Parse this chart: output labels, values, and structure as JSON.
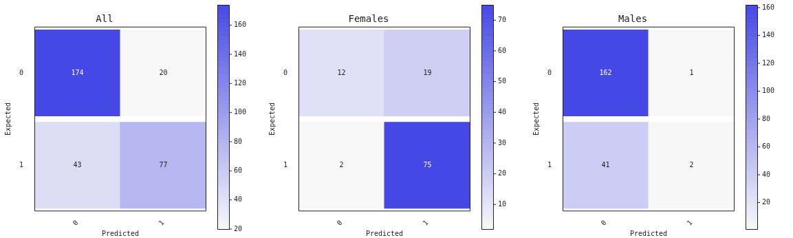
{
  "chart_data": [
    {
      "type": "heatmap",
      "title": "All",
      "xlabel": "Predicted",
      "ylabel": "Expected",
      "categories": [
        "0",
        "1"
      ],
      "y_categories": [
        "0",
        "1"
      ],
      "data_labels": true,
      "cells": [
        [
          174,
          20
        ],
        [
          43,
          77
        ]
      ],
      "clim": [
        20,
        174
      ],
      "cticks": [
        20,
        40,
        60,
        80,
        100,
        120,
        140,
        160
      ]
    },
    {
      "type": "heatmap",
      "title": "Females",
      "xlabel": "Predicted",
      "ylabel": "Expected",
      "categories": [
        "0",
        "1"
      ],
      "y_categories": [
        "0",
        "1"
      ],
      "data_labels": true,
      "cells": [
        [
          12,
          19
        ],
        [
          2,
          75
        ]
      ],
      "clim": [
        2,
        75
      ],
      "cticks": [
        10,
        20,
        30,
        40,
        50,
        60,
        70
      ]
    },
    {
      "type": "heatmap",
      "title": "Males",
      "xlabel": "Predicted",
      "ylabel": "Expected",
      "categories": [
        "0",
        "1"
      ],
      "y_categories": [
        "0",
        "1"
      ],
      "data_labels": true,
      "cells": [
        [
          162,
          1
        ],
        [
          41,
          2
        ]
      ],
      "clim": [
        1,
        162
      ],
      "cticks": [
        20,
        40,
        60,
        80,
        100,
        120,
        140,
        160
      ]
    }
  ]
}
